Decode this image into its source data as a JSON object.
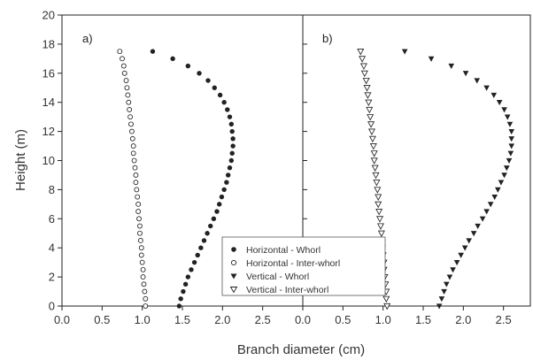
{
  "chart_data": {
    "type": "scatter",
    "xlabel": "Branch diameter (cm)",
    "ylabel": "Height (m)",
    "panel_xlim": [
      0,
      3
    ],
    "ylim": [
      0,
      20
    ],
    "xticks_left": [
      "0.0",
      "0.5",
      "1.0",
      "1.5",
      "2.0",
      "2.5"
    ],
    "xticks_right": [
      "0.0",
      "0.5",
      "1.0",
      "1.5",
      "2.0",
      "2.5"
    ],
    "yticks": [
      "0",
      "2",
      "4",
      "6",
      "8",
      "10",
      "12",
      "14",
      "16",
      "18",
      "20"
    ],
    "legend_position": "bottom-center",
    "panels": [
      {
        "label": "a)",
        "series": [
          {
            "name": "Horizontal - Whorl",
            "marker": "filled-circle",
            "points": [
              [
                1.46,
                0.0
              ],
              [
                1.48,
                0.5
              ],
              [
                1.51,
                1.0
              ],
              [
                1.54,
                1.5
              ],
              [
                1.57,
                2.0
              ],
              [
                1.61,
                2.5
              ],
              [
                1.65,
                3.0
              ],
              [
                1.69,
                3.5
              ],
              [
                1.73,
                4.0
              ],
              [
                1.77,
                4.5
              ],
              [
                1.81,
                5.0
              ],
              [
                1.85,
                5.5
              ],
              [
                1.89,
                6.0
              ],
              [
                1.93,
                6.5
              ],
              [
                1.96,
                7.0
              ],
              [
                1.99,
                7.5
              ],
              [
                2.02,
                8.0
              ],
              [
                2.05,
                8.5
              ],
              [
                2.07,
                9.0
              ],
              [
                2.09,
                9.5
              ],
              [
                2.11,
                10.0
              ],
              [
                2.12,
                10.5
              ],
              [
                2.13,
                11.0
              ],
              [
                2.13,
                11.5
              ],
              [
                2.12,
                12.0
              ],
              [
                2.11,
                12.5
              ],
              [
                2.09,
                13.0
              ],
              [
                2.06,
                13.5
              ],
              [
                2.02,
                14.0
              ],
              [
                1.97,
                14.5
              ],
              [
                1.9,
                15.0
              ],
              [
                1.82,
                15.5
              ],
              [
                1.71,
                16.0
              ],
              [
                1.57,
                16.5
              ],
              [
                1.38,
                17.0
              ],
              [
                1.13,
                17.5
              ]
            ]
          },
          {
            "name": "Horizontal - Inter-whorl",
            "marker": "open-circle",
            "points": [
              [
                1.04,
                0.0
              ],
              [
                1.04,
                0.5
              ],
              [
                1.03,
                1.0
              ],
              [
                1.02,
                1.5
              ],
              [
                1.01,
                2.0
              ],
              [
                1.01,
                2.5
              ],
              [
                1.0,
                3.0
              ],
              [
                0.99,
                3.5
              ],
              [
                0.99,
                4.0
              ],
              [
                0.98,
                4.5
              ],
              [
                0.97,
                5.0
              ],
              [
                0.97,
                5.5
              ],
              [
                0.96,
                6.0
              ],
              [
                0.95,
                6.5
              ],
              [
                0.95,
                7.0
              ],
              [
                0.94,
                7.5
              ],
              [
                0.93,
                8.0
              ],
              [
                0.92,
                8.5
              ],
              [
                0.92,
                9.0
              ],
              [
                0.91,
                9.5
              ],
              [
                0.9,
                10.0
              ],
              [
                0.89,
                10.5
              ],
              [
                0.89,
                11.0
              ],
              [
                0.88,
                11.5
              ],
              [
                0.87,
                12.0
              ],
              [
                0.86,
                12.5
              ],
              [
                0.85,
                13.0
              ],
              [
                0.84,
                13.5
              ],
              [
                0.83,
                14.0
              ],
              [
                0.82,
                14.5
              ],
              [
                0.81,
                15.0
              ],
              [
                0.8,
                15.5
              ],
              [
                0.78,
                16.0
              ],
              [
                0.77,
                16.5
              ],
              [
                0.75,
                17.0
              ],
              [
                0.72,
                17.5
              ]
            ]
          }
        ]
      },
      {
        "label": "b)",
        "series": [
          {
            "name": "Vertical - Whorl",
            "marker": "filled-triangle-down",
            "points": [
              [
                1.7,
                0.0
              ],
              [
                1.73,
                0.5
              ],
              [
                1.76,
                1.0
              ],
              [
                1.79,
                1.5
              ],
              [
                1.83,
                2.0
              ],
              [
                1.87,
                2.5
              ],
              [
                1.92,
                3.0
              ],
              [
                1.97,
                3.5
              ],
              [
                2.02,
                4.0
              ],
              [
                2.07,
                4.5
              ],
              [
                2.13,
                5.0
              ],
              [
                2.18,
                5.5
              ],
              [
                2.24,
                6.0
              ],
              [
                2.29,
                6.5
              ],
              [
                2.34,
                7.0
              ],
              [
                2.39,
                7.5
              ],
              [
                2.43,
                8.0
              ],
              [
                2.47,
                8.5
              ],
              [
                2.51,
                9.0
              ],
              [
                2.54,
                9.5
              ],
              [
                2.57,
                10.0
              ],
              [
                2.59,
                10.5
              ],
              [
                2.6,
                11.0
              ],
              [
                2.6,
                11.5
              ],
              [
                2.6,
                12.0
              ],
              [
                2.58,
                12.5
              ],
              [
                2.55,
                13.0
              ],
              [
                2.51,
                13.5
              ],
              [
                2.45,
                14.0
              ],
              [
                2.38,
                14.5
              ],
              [
                2.29,
                15.0
              ],
              [
                2.17,
                15.5
              ],
              [
                2.03,
                16.0
              ],
              [
                1.85,
                16.5
              ],
              [
                1.6,
                17.0
              ],
              [
                1.27,
                17.5
              ]
            ]
          },
          {
            "name": "Vertical - Inter-whorl",
            "marker": "open-triangle-down",
            "points": [
              [
                1.05,
                0.0
              ],
              [
                1.04,
                0.5
              ],
              [
                1.04,
                1.0
              ],
              [
                1.03,
                1.5
              ],
              [
                1.02,
                2.0
              ],
              [
                1.01,
                2.5
              ],
              [
                1.01,
                3.0
              ],
              [
                1.0,
                3.5
              ],
              [
                0.99,
                4.0
              ],
              [
                0.98,
                4.5
              ],
              [
                0.98,
                5.0
              ],
              [
                0.97,
                5.5
              ],
              [
                0.96,
                6.0
              ],
              [
                0.95,
                6.5
              ],
              [
                0.94,
                7.0
              ],
              [
                0.94,
                7.5
              ],
              [
                0.93,
                8.0
              ],
              [
                0.92,
                8.5
              ],
              [
                0.91,
                9.0
              ],
              [
                0.9,
                9.5
              ],
              [
                0.89,
                10.0
              ],
              [
                0.89,
                10.5
              ],
              [
                0.88,
                11.0
              ],
              [
                0.87,
                11.5
              ],
              [
                0.86,
                12.0
              ],
              [
                0.85,
                12.5
              ],
              [
                0.84,
                13.0
              ],
              [
                0.83,
                13.5
              ],
              [
                0.82,
                14.0
              ],
              [
                0.81,
                14.5
              ],
              [
                0.8,
                15.0
              ],
              [
                0.79,
                15.5
              ],
              [
                0.77,
                16.0
              ],
              [
                0.76,
                16.5
              ],
              [
                0.74,
                17.0
              ],
              [
                0.72,
                17.5
              ]
            ]
          }
        ]
      }
    ],
    "legend": [
      {
        "name": "Horizontal - Whorl",
        "marker": "filled-circle"
      },
      {
        "name": "Horizontal - Inter-whorl",
        "marker": "open-circle"
      },
      {
        "name": "Vertical - Whorl",
        "marker": "filled-triangle-down"
      },
      {
        "name": "Vertical - Inter-whorl",
        "marker": "open-triangle-down"
      }
    ]
  }
}
